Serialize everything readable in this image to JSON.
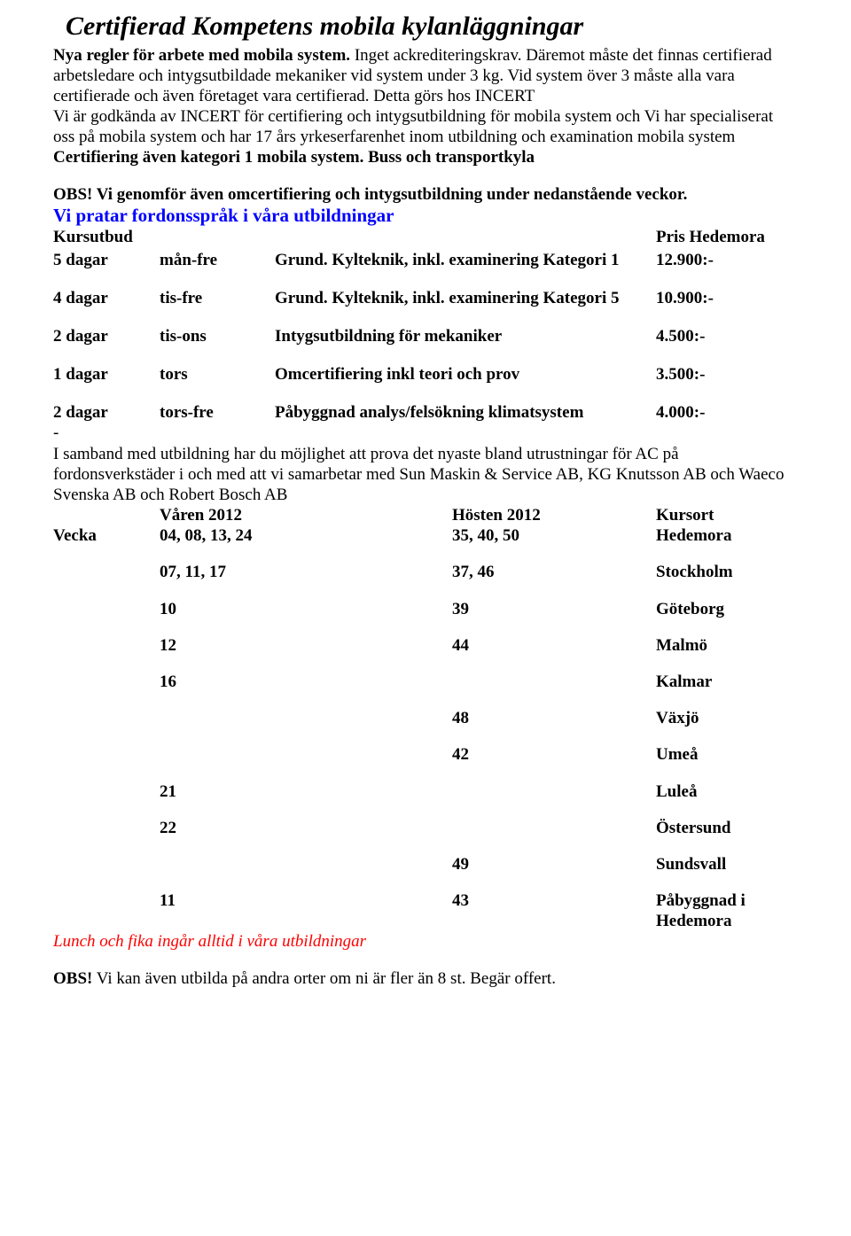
{
  "title": "Certifierad Kompetens mobila kylanläggningar",
  "intro_bold": "Nya regler för arbete med mobila system.",
  "intro_rest": " Inget ackrediteringskrav. Däremot måste det finnas certifierad arbetsledare och intygsutbildade mekaniker vid system under 3 kg. Vid system över 3 måste alla vara certifierade och även företaget vara certifierad. Detta görs hos INCERT",
  "intro_line2": "Vi är godkända av INCERT för certifiering och intygsutbildning för mobila system och Vi har specialiserat oss på mobila system och har 17 års yrkeserfarenhet inom utbildning och examination mobila system ",
  "intro_line2_bold": "Certifiering även kategori 1 mobila system. Buss och transportkyla",
  "obs1": "OBS! Vi genomför även omcertifiering och intygsutbildning under nedanstående veckor.",
  "blue_line": "Vi pratar fordonsspråk i våra utbildningar",
  "kurs_hdr_left": "Kursutbud",
  "kurs_hdr_right": "Pris Hedemora",
  "courses": [
    {
      "dur": "5 dagar",
      "days": "mån-fre",
      "desc": "Grund. Kylteknik, inkl. examinering Kategori 1",
      "price": "12.900:-"
    },
    {
      "dur": "4 dagar",
      "days": "tis-fre",
      "desc": "Grund. Kylteknik, inkl. examinering Kategori 5",
      "price": "10.900:-"
    },
    {
      "dur": "2 dagar",
      "days": "tis-ons",
      "desc": "Intygsutbildning för mekaniker",
      "price": "4.500:-"
    },
    {
      "dur": "1 dagar",
      "days": "tors",
      "desc": "Omcertifiering inkl teori och prov",
      "price": "3.500:-"
    },
    {
      "dur": "2 dagar",
      "days": "tors-fre",
      "desc": "Påbyggnad analys/felsökning klimatsystem",
      "price": "4.000:-"
    }
  ],
  "dash": "-",
  "after_courses": "I samband med utbildning har du möjlighet att prova det nyaste bland utrustningar för AC på fordonsverkstäder i och med att vi samarbetar med Sun Maskin & Service AB, KG Knutsson AB och Waeco Svenska AB och Robert Bosch AB",
  "sched_hdr": {
    "spring": "Våren 2012",
    "fall": "Hösten 2012",
    "ort": "Kursort"
  },
  "vecka_label": "Vecka",
  "schedule": [
    {
      "lab": "Vecka",
      "spring": "04, 08, 13, 24",
      "fall": "35, 40, 50",
      "ort": "Hedemora"
    },
    {
      "lab": "",
      "spring": "07, 11, 17",
      "fall": "37, 46",
      "ort": "Stockholm"
    },
    {
      "lab": "",
      "spring": "10",
      "fall": "39",
      "ort": "Göteborg"
    },
    {
      "lab": "",
      "spring": "12",
      "fall": "44",
      "ort": "Malmö"
    },
    {
      "lab": "",
      "spring": "16",
      "fall": "",
      "ort": "Kalmar"
    },
    {
      "lab": "",
      "spring": "",
      "fall": "48",
      "ort": "Växjö"
    },
    {
      "lab": "",
      "spring": "",
      "fall": "42",
      "ort": "Umeå"
    },
    {
      "lab": "",
      "spring": "21",
      "fall": "",
      "ort": "Luleå"
    },
    {
      "lab": "",
      "spring": "22",
      "fall": "",
      "ort": "Östersund"
    },
    {
      "lab": "",
      "spring": "",
      "fall": "49",
      "ort": "Sundsvall"
    },
    {
      "lab": "",
      "spring": "11",
      "fall": "43",
      "ort": "Påbyggnad i Hedemora"
    }
  ],
  "lunch_line": "Lunch och fika ingår alltid i våra utbildningar",
  "obs2_bold": "OBS!",
  "obs2_rest": " Vi kan även utbilda på andra orter om ni är fler än 8 st. Begär offert."
}
